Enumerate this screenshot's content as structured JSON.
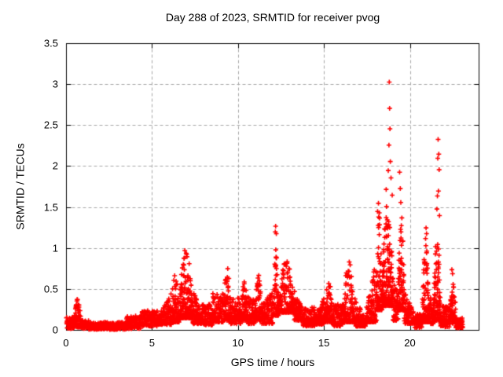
{
  "chart_data": {
    "type": "scatter",
    "title": "Day 288 of 2023, SRMTID for receiver pvog",
    "xlabel": "GPS time / hours",
    "ylabel": "SRMTID / TECUs",
    "xlim": [
      0,
      24
    ],
    "ylim": [
      0,
      3.5
    ],
    "xticks": [
      0,
      5,
      10,
      15,
      20
    ],
    "xtick_labels": [
      "0",
      "5",
      "10",
      "15",
      "20"
    ],
    "yticks": [
      0,
      0.5,
      1,
      1.5,
      2,
      2.5,
      3,
      3.5
    ],
    "ytick_labels": [
      "0",
      "0.5",
      "1",
      "1.5",
      "2",
      "2.5",
      "3",
      "3.5"
    ],
    "grid": true,
    "legend": "none",
    "marker": "plus",
    "marker_color": "#ff0000",
    "grid_color": "#a6a6a6",
    "border_color": "#000000",
    "background_color": "#ffffff",
    "series_name": "SRMTID",
    "x_data_range": [
      0.0,
      23.0
    ],
    "peak_value": 3.03,
    "peak_hour": 18.8,
    "band_segments": [
      {
        "from": 0.0,
        "to": 0.45,
        "low": 0.02,
        "high": 0.16,
        "shape": "flat",
        "count": 55
      },
      {
        "from": 0.45,
        "to": 0.85,
        "low": 0.04,
        "high": 0.42,
        "shape": "peak",
        "count": 70
      },
      {
        "from": 0.85,
        "to": 1.3,
        "low": 0.02,
        "high": 0.13,
        "shape": "flat",
        "count": 55
      },
      {
        "from": 1.3,
        "to": 3.5,
        "low": 0.01,
        "high": 0.1,
        "shape": "flat",
        "count": 260
      },
      {
        "from": 3.5,
        "to": 4.4,
        "low": 0.02,
        "high": 0.18,
        "shape": "flat",
        "count": 110
      },
      {
        "from": 4.4,
        "to": 5.3,
        "low": 0.05,
        "high": 0.24,
        "shape": "flat",
        "count": 110
      },
      {
        "from": 5.3,
        "to": 6.1,
        "low": 0.07,
        "high": 0.45,
        "shape": "rise",
        "count": 110
      },
      {
        "from": 6.1,
        "to": 6.55,
        "low": 0.1,
        "high": 0.78,
        "shape": "peak",
        "count": 90
      },
      {
        "from": 6.55,
        "to": 7.35,
        "low": 0.15,
        "high": 1.0,
        "shape": "peak",
        "count": 170
      },
      {
        "from": 7.35,
        "to": 7.9,
        "low": 0.08,
        "high": 0.5,
        "shape": "fall",
        "count": 90
      },
      {
        "from": 7.9,
        "to": 8.5,
        "low": 0.06,
        "high": 0.32,
        "shape": "flat",
        "count": 80
      },
      {
        "from": 8.5,
        "to": 9.15,
        "low": 0.1,
        "high": 0.45,
        "shape": "flat",
        "count": 90
      },
      {
        "from": 9.15,
        "to": 9.55,
        "low": 0.12,
        "high": 0.85,
        "shape": "peak",
        "count": 70
      },
      {
        "from": 9.55,
        "to": 10.15,
        "low": 0.08,
        "high": 0.4,
        "shape": "flat",
        "count": 80
      },
      {
        "from": 10.15,
        "to": 10.55,
        "low": 0.12,
        "high": 0.6,
        "shape": "peak",
        "count": 70
      },
      {
        "from": 10.55,
        "to": 10.95,
        "low": 0.08,
        "high": 0.42,
        "shape": "flat",
        "count": 60
      },
      {
        "from": 10.95,
        "to": 11.35,
        "low": 0.12,
        "high": 0.7,
        "shape": "peak",
        "count": 70
      },
      {
        "from": 11.35,
        "to": 12.0,
        "low": 0.08,
        "high": 0.45,
        "shape": "flat",
        "count": 90
      },
      {
        "from": 12.0,
        "to": 12.35,
        "low": 0.18,
        "high": 1.22,
        "shape": "peak",
        "count": 70
      },
      {
        "from": 12.35,
        "to": 13.25,
        "low": 0.22,
        "high": 0.88,
        "shape": "peak",
        "count": 160
      },
      {
        "from": 13.25,
        "to": 13.75,
        "low": 0.12,
        "high": 0.58,
        "shape": "fall",
        "count": 80
      },
      {
        "from": 13.75,
        "to": 14.45,
        "low": 0.05,
        "high": 0.28,
        "shape": "flat",
        "count": 90
      },
      {
        "from": 14.45,
        "to": 15.0,
        "low": 0.07,
        "high": 0.45,
        "shape": "rise",
        "count": 80
      },
      {
        "from": 15.0,
        "to": 15.5,
        "low": 0.1,
        "high": 0.62,
        "shape": "peak",
        "count": 90
      },
      {
        "from": 15.5,
        "to": 16.1,
        "low": 0.05,
        "high": 0.32,
        "shape": "flat",
        "count": 80
      },
      {
        "from": 16.1,
        "to": 16.75,
        "low": 0.1,
        "high": 0.88,
        "shape": "peak",
        "count": 110
      },
      {
        "from": 16.75,
        "to": 17.45,
        "low": 0.05,
        "high": 0.4,
        "shape": "fall",
        "count": 90
      },
      {
        "from": 17.45,
        "to": 18.05,
        "low": 0.1,
        "high": 0.9,
        "shape": "rise",
        "count": 100
      },
      {
        "from": 18.05,
        "to": 18.35,
        "low": 0.25,
        "high": 1.5,
        "shape": "peak",
        "count": 80
      },
      {
        "from": 18.35,
        "to": 19.0,
        "low": 0.3,
        "high": 1.55,
        "shape": "peak",
        "count": 170
      },
      {
        "from": 19.0,
        "to": 19.3,
        "low": 0.12,
        "high": 0.55,
        "shape": "flat",
        "count": 50
      },
      {
        "from": 19.3,
        "to": 19.65,
        "low": 0.25,
        "high": 1.5,
        "shape": "peak",
        "count": 90
      },
      {
        "from": 19.65,
        "to": 20.25,
        "low": 0.08,
        "high": 0.5,
        "shape": "fall",
        "count": 80
      },
      {
        "from": 20.25,
        "to": 20.7,
        "low": 0.03,
        "high": 0.2,
        "shape": "flat",
        "count": 60
      },
      {
        "from": 20.7,
        "to": 21.1,
        "low": 0.1,
        "high": 1.1,
        "shape": "peak",
        "count": 90
      },
      {
        "from": 21.1,
        "to": 21.35,
        "low": 0.08,
        "high": 0.4,
        "shape": "flat",
        "count": 40
      },
      {
        "from": 21.35,
        "to": 21.75,
        "low": 0.12,
        "high": 1.3,
        "shape": "peak",
        "count": 100
      },
      {
        "from": 21.75,
        "to": 22.3,
        "low": 0.04,
        "high": 0.3,
        "shape": "flat",
        "count": 80
      },
      {
        "from": 22.3,
        "to": 22.65,
        "low": 0.08,
        "high": 0.7,
        "shape": "peak",
        "count": 60
      },
      {
        "from": 22.65,
        "to": 23.05,
        "low": 0.03,
        "high": 0.15,
        "shape": "flat",
        "count": 60
      }
    ],
    "outlier_points": [
      [
        12.17,
        1.27
      ],
      [
        12.21,
        1.18
      ],
      [
        18.78,
        3.03
      ],
      [
        18.8,
        2.71
      ],
      [
        18.82,
        2.46
      ],
      [
        18.76,
        2.26
      ],
      [
        18.84,
        2.06
      ],
      [
        18.72,
        1.95
      ],
      [
        18.88,
        1.86
      ],
      [
        18.6,
        1.72
      ],
      [
        18.95,
        1.65
      ],
      [
        18.15,
        1.55
      ],
      [
        18.1,
        1.45
      ],
      [
        19.38,
        1.93
      ],
      [
        19.42,
        1.73
      ],
      [
        19.45,
        1.56
      ],
      [
        20.92,
        1.25
      ],
      [
        20.95,
        1.18
      ],
      [
        20.89,
        1.12
      ],
      [
        21.62,
        2.33
      ],
      [
        21.66,
        2.15
      ],
      [
        21.6,
        2.1
      ],
      [
        21.68,
        1.96
      ],
      [
        21.64,
        1.7
      ],
      [
        21.58,
        1.64
      ],
      [
        21.55,
        1.48
      ],
      [
        21.7,
        1.4
      ],
      [
        22.42,
        0.74
      ],
      [
        22.46,
        0.69
      ]
    ]
  }
}
